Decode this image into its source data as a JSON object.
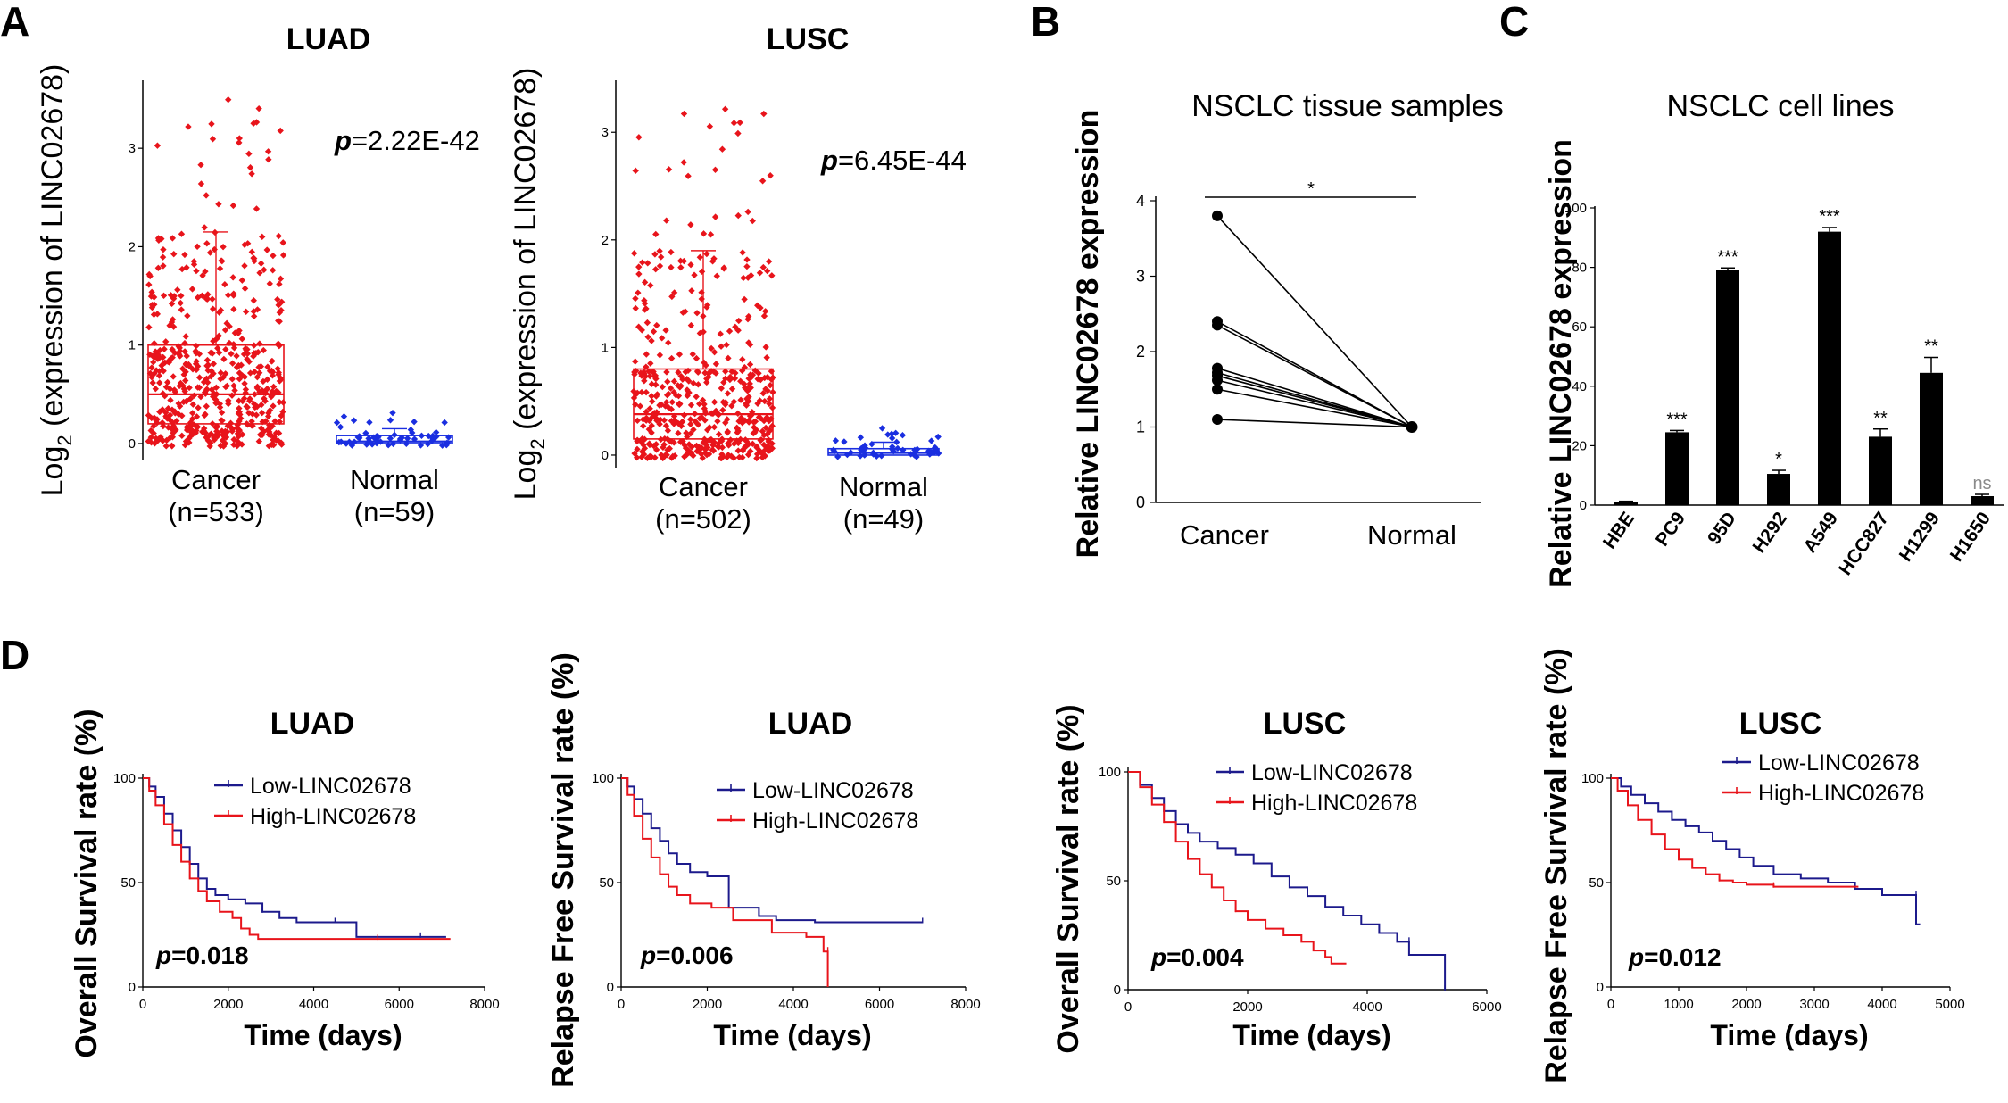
{
  "panels": {
    "A": "A",
    "B": "B",
    "C": "C",
    "D": "D"
  },
  "chart_data": [
    {
      "id": "A1",
      "type": "scatter",
      "title": "LUAD",
      "ylabel_pre": "Log",
      "ylabel_sub": "2",
      "ylabel_post": " (expression of LINC02678)",
      "p_label": "p",
      "p_value": "=2.22E-42",
      "ylim": [
        -0.1,
        3.6
      ],
      "yticks": [
        0,
        1,
        2,
        3
      ],
      "categories": [
        {
          "name": "Cancer",
          "n": "(n=533)",
          "count": 533,
          "color": "#e8141b",
          "median": 0.5,
          "q1": 0.2,
          "q3": 1.0,
          "whisker_high": 2.15,
          "max": 3.55
        },
        {
          "name": "Normal",
          "n": "(n=59)",
          "count": 59,
          "color": "#1a2ee0",
          "median": 0.02,
          "q1": 0.0,
          "q3": 0.08,
          "whisker_high": 0.15,
          "max": 0.33
        }
      ]
    },
    {
      "id": "A2",
      "type": "scatter",
      "title": "LUSC",
      "ylabel_pre": "Log",
      "ylabel_sub": "2",
      "ylabel_post": " (expression of LINC02678)",
      "p_label": "p",
      "p_value": "=6.45E-44",
      "ylim": [
        -0.05,
        3.4
      ],
      "yticks": [
        0,
        1,
        2,
        3
      ],
      "categories": [
        {
          "name": "Cancer",
          "n": "(n=502)",
          "count": 502,
          "color": "#e8141b",
          "median": 0.38,
          "q1": 0.15,
          "q3": 0.8,
          "whisker_high": 1.9,
          "max": 3.3
        },
        {
          "name": "Normal",
          "n": "(n=49)",
          "count": 49,
          "color": "#1a2ee0",
          "median": 0.02,
          "q1": 0.0,
          "q3": 0.06,
          "whisker_high": 0.12,
          "max": 0.25
        }
      ]
    },
    {
      "id": "B",
      "type": "line",
      "title": "NSCLC tissue samples",
      "ylabel": "Relative LINC02678 expression",
      "categories": [
        "Cancer",
        "Normal"
      ],
      "ylim": [
        0,
        4
      ],
      "yticks": [
        0,
        1,
        2,
        3,
        4
      ],
      "sig": "*",
      "cancer_values": [
        3.8,
        2.4,
        2.35,
        1.78,
        1.72,
        1.68,
        1.62,
        1.5,
        1.1
      ],
      "normal_value": 1.0
    },
    {
      "id": "C",
      "type": "bar",
      "title": "NSCLC cell lines",
      "ylabel": "Relative LINC02678 expression",
      "categories": [
        "HBE",
        "PC9",
        "95D",
        "H292",
        "A549",
        "HCC827",
        "H1299",
        "H1650"
      ],
      "values": [
        1,
        24.5,
        79,
        10.5,
        92,
        23,
        44.5,
        3
      ],
      "errors": [
        0.3,
        0.6,
        0.8,
        1.2,
        1.4,
        2.6,
        5.2,
        0.6
      ],
      "significance": [
        "",
        "***",
        "***",
        "*",
        "***",
        "**",
        "**",
        "ns"
      ],
      "ylim": [
        0,
        100
      ],
      "yticks": [
        0,
        20,
        40,
        60,
        80,
        100
      ]
    },
    {
      "id": "D1",
      "type": "line",
      "title": "LUAD",
      "ylabel": "Overall Survival rate (%)",
      "xlabel": "Time (days)",
      "xlim": [
        0,
        8000
      ],
      "xticks": [
        0,
        2000,
        4000,
        6000,
        8000
      ],
      "ylim": [
        0,
        100
      ],
      "yticks": [
        0,
        50,
        100
      ],
      "p_label": "p",
      "p_value": "=0.018",
      "series": [
        {
          "name": "Low-LINC02678",
          "color": "#1c1a8c",
          "points": [
            [
              0,
              100
            ],
            [
              150,
              96
            ],
            [
              300,
              91
            ],
            [
              500,
              83
            ],
            [
              700,
              75
            ],
            [
              900,
              67
            ],
            [
              1100,
              59
            ],
            [
              1300,
              52
            ],
            [
              1500,
              47
            ],
            [
              1700,
              44
            ],
            [
              2000,
              42
            ],
            [
              2400,
              40
            ],
            [
              2800,
              36
            ],
            [
              3200,
              33
            ],
            [
              3600,
              31
            ],
            [
              4500,
              31
            ],
            [
              5000,
              31
            ],
            [
              5000,
              24
            ],
            [
              6500,
              24
            ],
            [
              7100,
              24
            ]
          ]
        },
        {
          "name": "High-LINC02678",
          "color": "#e8141b",
          "points": [
            [
              0,
              100
            ],
            [
              150,
              94
            ],
            [
              300,
              87
            ],
            [
              500,
              78
            ],
            [
              700,
              68
            ],
            [
              900,
              60
            ],
            [
              1100,
              52
            ],
            [
              1300,
              46
            ],
            [
              1500,
              41
            ],
            [
              1800,
              36
            ],
            [
              2100,
              33
            ],
            [
              2300,
              28
            ],
            [
              2500,
              25
            ],
            [
              2700,
              23
            ],
            [
              4000,
              23
            ],
            [
              5500,
              23
            ],
            [
              7200,
              23
            ]
          ]
        }
      ]
    },
    {
      "id": "D2",
      "type": "line",
      "title": "LUAD",
      "ylabel": "Relapse Free Survival rate (%)",
      "xlabel": "Time (days)",
      "xlim": [
        0,
        8000
      ],
      "xticks": [
        0,
        2000,
        4000,
        6000,
        8000
      ],
      "ylim": [
        0,
        100
      ],
      "yticks": [
        0,
        50,
        100
      ],
      "p_label": "p",
      "p_value": "=0.006",
      "series": [
        {
          "name": "Low-LINC02678",
          "color": "#1c1a8c",
          "points": [
            [
              0,
              100
            ],
            [
              150,
              96
            ],
            [
              300,
              90
            ],
            [
              500,
              83
            ],
            [
              700,
              76
            ],
            [
              900,
              70
            ],
            [
              1100,
              64
            ],
            [
              1300,
              59
            ],
            [
              1600,
              55
            ],
            [
              2000,
              53
            ],
            [
              2500,
              51
            ],
            [
              2500,
              38
            ],
            [
              3200,
              34
            ],
            [
              3600,
              32
            ],
            [
              4500,
              31
            ],
            [
              7000,
              31
            ]
          ]
        },
        {
          "name": "High-LINC02678",
          "color": "#e8141b",
          "points": [
            [
              0,
              100
            ],
            [
              150,
              92
            ],
            [
              300,
              82
            ],
            [
              500,
              71
            ],
            [
              700,
              62
            ],
            [
              900,
              54
            ],
            [
              1100,
              48
            ],
            [
              1300,
              44
            ],
            [
              1600,
              40
            ],
            [
              2100,
              38
            ],
            [
              2600,
              36
            ],
            [
              2600,
              32
            ],
            [
              3500,
              30
            ],
            [
              3500,
              26
            ],
            [
              4300,
              26
            ],
            [
              4300,
              24
            ],
            [
              4700,
              24
            ],
            [
              4700,
              17
            ],
            [
              4800,
              17
            ],
            [
              4800,
              0
            ]
          ]
        }
      ]
    },
    {
      "id": "D3",
      "type": "line",
      "title": "LUSC",
      "ylabel": "Overall Survival rate (%)",
      "xlabel": "Time (days)",
      "xlim": [
        0,
        6000
      ],
      "xticks": [
        0,
        2000,
        4000,
        6000
      ],
      "ylim": [
        0,
        100
      ],
      "yticks": [
        0,
        50,
        100
      ],
      "p_label": "p",
      "p_value": "=0.004",
      "series": [
        {
          "name": "Low-LINC02678",
          "color": "#1c1a8c",
          "points": [
            [
              0,
              100
            ],
            [
              200,
              94
            ],
            [
              400,
              88
            ],
            [
              600,
              82
            ],
            [
              800,
              76
            ],
            [
              1000,
              72
            ],
            [
              1200,
              68
            ],
            [
              1500,
              65
            ],
            [
              1800,
              62
            ],
            [
              2100,
              58
            ],
            [
              2400,
              52
            ],
            [
              2700,
              47
            ],
            [
              3000,
              43
            ],
            [
              3300,
              38
            ],
            [
              3600,
              34
            ],
            [
              3900,
              30
            ],
            [
              4200,
              26
            ],
            [
              4500,
              22
            ],
            [
              4700,
              22
            ],
            [
              4700,
              16
            ],
            [
              5300,
              16
            ],
            [
              5300,
              0
            ]
          ]
        },
        {
          "name": "High-LINC02678",
          "color": "#e8141b",
          "points": [
            [
              0,
              100
            ],
            [
              200,
              93
            ],
            [
              400,
              85
            ],
            [
              600,
              77
            ],
            [
              800,
              68
            ],
            [
              1000,
              60
            ],
            [
              1200,
              53
            ],
            [
              1400,
              47
            ],
            [
              1600,
              41
            ],
            [
              1800,
              36
            ],
            [
              2000,
              32
            ],
            [
              2300,
              28
            ],
            [
              2600,
              25
            ],
            [
              2900,
              22
            ],
            [
              3100,
              18
            ],
            [
              3300,
              15
            ],
            [
              3400,
              12
            ],
            [
              3650,
              12
            ]
          ]
        }
      ]
    },
    {
      "id": "D4",
      "type": "line",
      "title": "LUSC",
      "ylabel": "Relapse Free Survival rate (%)",
      "xlabel": "Time (days)",
      "xlim": [
        0,
        5000
      ],
      "xticks": [
        0,
        1000,
        2000,
        3000,
        4000,
        5000
      ],
      "ylim": [
        0,
        100
      ],
      "yticks": [
        0,
        50,
        100
      ],
      "p_label": "p",
      "p_value": "=0.012",
      "series": [
        {
          "name": "Low-LINC02678",
          "color": "#1c1a8c",
          "points": [
            [
              0,
              100
            ],
            [
              150,
              96
            ],
            [
              300,
              92
            ],
            [
              500,
              88
            ],
            [
              700,
              84
            ],
            [
              900,
              80
            ],
            [
              1100,
              77
            ],
            [
              1300,
              74
            ],
            [
              1500,
              70
            ],
            [
              1700,
              66
            ],
            [
              1900,
              62
            ],
            [
              2100,
              58
            ],
            [
              2400,
              54
            ],
            [
              2800,
              52
            ],
            [
              3200,
              50
            ],
            [
              3600,
              47
            ],
            [
              4000,
              44
            ],
            [
              4400,
              44
            ],
            [
              4500,
              44
            ],
            [
              4500,
              30
            ],
            [
              4560,
              30
            ]
          ]
        },
        {
          "name": "High-LINC02678",
          "color": "#e8141b",
          "points": [
            [
              0,
              100
            ],
            [
              100,
              94
            ],
            [
              250,
              87
            ],
            [
              400,
              80
            ],
            [
              600,
              73
            ],
            [
              800,
              66
            ],
            [
              1000,
              61
            ],
            [
              1200,
              57
            ],
            [
              1400,
              54
            ],
            [
              1600,
              51
            ],
            [
              1800,
              50
            ],
            [
              2000,
              49
            ],
            [
              2400,
              48
            ],
            [
              2800,
              48
            ],
            [
              3650,
              48
            ]
          ]
        }
      ]
    }
  ]
}
